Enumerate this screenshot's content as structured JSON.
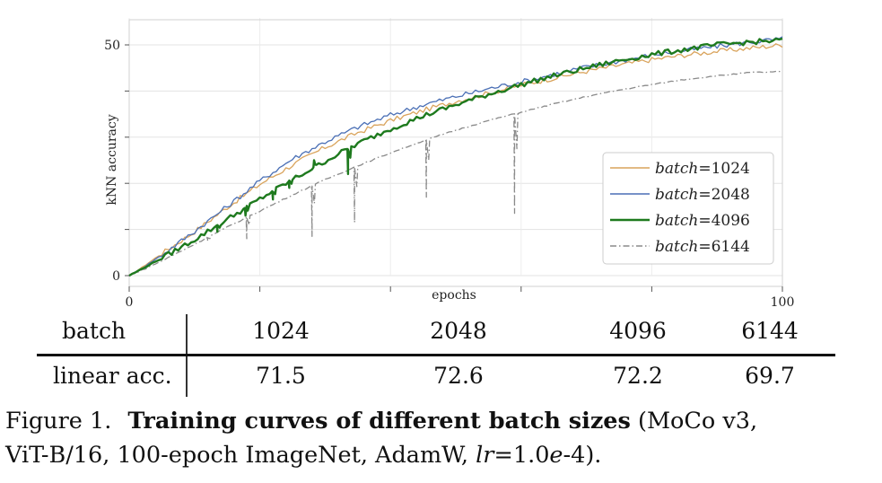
{
  "chart_data": {
    "type": "line",
    "xlabel": "epochs",
    "ylabel": "kNN accuracy",
    "xlim": [
      0,
      100
    ],
    "ylim": [
      0,
      50
    ],
    "x_ticks": [
      "0",
      "100"
    ],
    "y_ticks": [
      "0",
      "50"
    ],
    "x_gridlines": [
      0,
      20,
      40,
      60,
      80,
      100
    ],
    "y_gridlines": [
      0,
      10,
      20,
      30,
      40,
      50
    ],
    "grid": true,
    "legend_position": "lower-right",
    "series": [
      {
        "name": "batch=1024",
        "label_italic": "batch",
        "label_value": "=1024",
        "color": "#d9a35b",
        "style": "solid",
        "x": [
          0,
          2,
          5,
          10,
          15,
          20,
          25,
          30,
          35,
          40,
          45,
          50,
          55,
          60,
          65,
          70,
          75,
          80,
          85,
          90,
          95,
          100
        ],
        "y": [
          0,
          1.8,
          4.8,
          9.5,
          14.8,
          19.8,
          24.0,
          27.8,
          31.0,
          33.6,
          35.8,
          37.8,
          39.5,
          41.3,
          42.8,
          44.3,
          45.6,
          46.8,
          47.8,
          48.6,
          49.3,
          50.0
        ]
      },
      {
        "name": "batch=2048",
        "label_italic": "batch",
        "label_value": "=2048",
        "color": "#4a6fb5",
        "style": "solid",
        "x": [
          0,
          2,
          5,
          10,
          15,
          20,
          25,
          30,
          35,
          40,
          45,
          50,
          55,
          60,
          65,
          70,
          75,
          80,
          85,
          90,
          95,
          100
        ],
        "y": [
          0,
          1.6,
          4.5,
          9.6,
          15.0,
          20.5,
          25.3,
          29.0,
          32.2,
          34.8,
          37.0,
          38.8,
          40.5,
          42.0,
          43.6,
          45.2,
          46.5,
          47.8,
          48.8,
          49.7,
          50.6,
          51.3
        ]
      },
      {
        "name": "batch=4096",
        "label_italic": "batch",
        "label_value": "=4096",
        "color": "#1e7a1e",
        "style": "solid",
        "x": [
          0,
          2,
          5,
          10,
          15,
          20,
          25,
          30,
          35,
          40,
          45,
          50,
          55,
          60,
          65,
          70,
          75,
          80,
          85,
          90,
          95,
          100
        ],
        "y": [
          0,
          1.5,
          3.8,
          7.8,
          12.2,
          16.6,
          20.8,
          24.8,
          28.6,
          31.8,
          34.6,
          37.0,
          39.3,
          41.4,
          43.3,
          45.0,
          46.6,
          47.9,
          49.0,
          50.0,
          50.6,
          51.0
        ],
        "dips": [
          [
            13.5,
            9.5
          ],
          [
            17.8,
            13.0
          ],
          [
            22.0,
            16.5
          ],
          [
            24.5,
            19.0
          ],
          [
            28.3,
            25.0
          ],
          [
            33.5,
            22.0
          ]
        ]
      },
      {
        "name": "batch=6144",
        "label_italic": "batch",
        "label_value": "=6144",
        "color": "#8a8a8a",
        "style": "dashdot",
        "x": [
          0,
          2,
          5,
          10,
          15,
          20,
          25,
          30,
          35,
          40,
          45,
          50,
          55,
          60,
          65,
          70,
          75,
          80,
          85,
          90,
          95,
          100
        ],
        "y": [
          0,
          1.2,
          3.2,
          6.8,
          10.5,
          14.0,
          17.5,
          20.8,
          23.8,
          26.6,
          29.2,
          31.5,
          33.6,
          35.4,
          37.2,
          38.8,
          40.2,
          41.4,
          42.5,
          43.3,
          44.0,
          44.2
        ],
        "dips": [
          [
            12.0,
            7.5
          ],
          [
            18.0,
            8.0
          ],
          [
            28.0,
            8.5
          ],
          [
            34.5,
            11.5
          ],
          [
            45.5,
            17.0
          ],
          [
            59.0,
            13.5
          ]
        ]
      }
    ]
  },
  "table": {
    "header_label": "batch",
    "row_label": "linear acc.",
    "columns": [
      "1024",
      "2048",
      "4096",
      "6144"
    ],
    "values": [
      "71.5",
      "72.6",
      "72.2",
      "69.7"
    ]
  },
  "caption": {
    "prefix": "Figure 1.",
    "bold": "Training curves of different batch sizes",
    "line1_rest": " (MoCo v3,",
    "line2_start": "ViT-B/16, 100-epoch ImageNet, AdamW, ",
    "lr_var": "lr",
    "lr_eq": "=1.0",
    "lr_e": "e",
    "lr_end": "-4)."
  }
}
